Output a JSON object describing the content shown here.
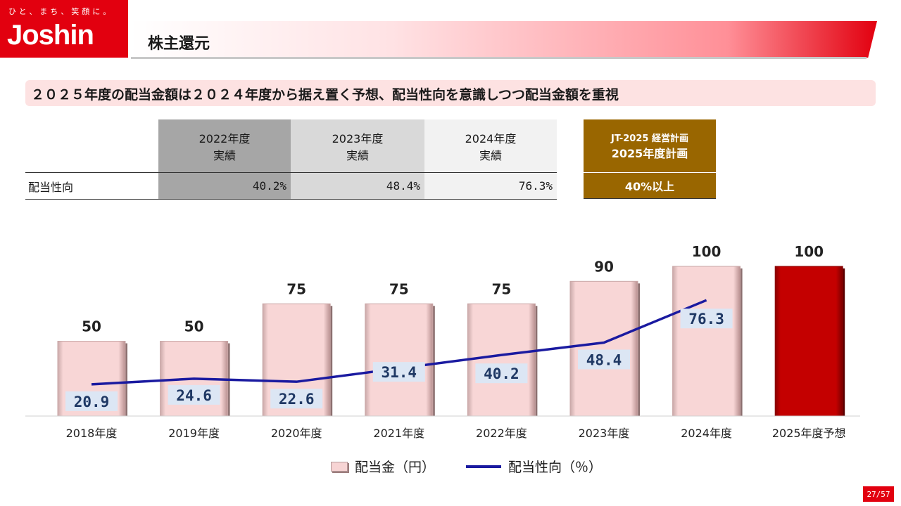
{
  "header": {
    "logo_tagline": "ひと、まち、笑顔に。",
    "logo_name": "Joshin",
    "page_title": "株主還元"
  },
  "subtitle": "２０２５年度の配当金額は２０２４年度から据え置く予想、配当性向を意識しつつ配当金額を重視",
  "table": {
    "columns": [
      {
        "line1": "2022年度",
        "line2": "実績",
        "bg": "#a6a6a6"
      },
      {
        "line1": "2023年度",
        "line2": "実績",
        "bg": "#d9d9d9"
      },
      {
        "line1": "2024年度",
        "line2": "実績",
        "bg": "#f2f2f2"
      }
    ],
    "row_label": "配当性向",
    "row_values": [
      "40.2%",
      "48.4%",
      "76.3%"
    ],
    "plan": {
      "line1": "JT-2025 経営計画",
      "line2": "2025年度計画",
      "value": "40%以上",
      "bg": "#996600"
    }
  },
  "chart_data": {
    "type": "bar",
    "categories": [
      "2018年度",
      "2019年度",
      "2020年度",
      "2021年度",
      "2022年度",
      "2023年度",
      "2024年度",
      "2025年度予想"
    ],
    "series": [
      {
        "name": "配当金（円）",
        "type": "bar",
        "values": [
          50,
          50,
          75,
          75,
          75,
          90,
          100,
          100
        ],
        "color": "#f7d4d4",
        "highlight_color": "#c00000"
      },
      {
        "name": "配当性向（％）",
        "type": "line",
        "values": [
          20.9,
          24.6,
          22.6,
          31.4,
          40.2,
          48.4,
          76.3,
          null
        ],
        "color": "#1a1aa0"
      }
    ],
    "bar_labels": [
      "50",
      "50",
      "75",
      "75",
      "75",
      "90",
      "100",
      "100"
    ],
    "line_labels": [
      "20.9",
      "24.6",
      "22.6",
      "31.4",
      "40.2",
      "48.4",
      "76.3"
    ]
  },
  "page_number": "27/57"
}
